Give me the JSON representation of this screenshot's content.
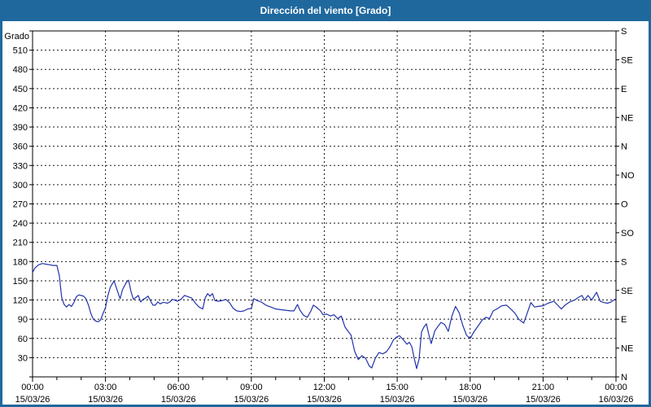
{
  "window": {
    "title": "Dirección del viento [Grado]"
  },
  "colors": {
    "frame": "#1f689e",
    "titlebar": "#1f689e",
    "title_text": "#ffffff",
    "panel": "#ffffff",
    "grid": "#1a1a1a",
    "axis": "#000000",
    "label": "#000000",
    "series": "#2233aa"
  },
  "chart_data": {
    "type": "line",
    "title": "Dirección del viento [Grado]",
    "ylabel_left": "Grado",
    "grid": "dashed",
    "legend": "none",
    "y_left": {
      "min": 0,
      "max": 540,
      "tick_step": 30,
      "first_label": 30,
      "last_label": 510
    },
    "y_right_ticks": [
      {
        "value": 0,
        "label": "N"
      },
      {
        "value": 45,
        "label": "NE"
      },
      {
        "value": 90,
        "label": "E"
      },
      {
        "value": 135,
        "label": "SE"
      },
      {
        "value": 180,
        "label": "S"
      },
      {
        "value": 225,
        "label": "SO"
      },
      {
        "value": 270,
        "label": "O"
      },
      {
        "value": 315,
        "label": "NO"
      },
      {
        "value": 360,
        "label": "N"
      },
      {
        "value": 405,
        "label": "NE"
      },
      {
        "value": 450,
        "label": "E"
      },
      {
        "value": 495,
        "label": "SE"
      },
      {
        "value": 540,
        "label": "S"
      }
    ],
    "x_axis": {
      "min_hours": 0,
      "max_hours": 24,
      "major_step_hours": 3,
      "minor_step_hours": 1,
      "major_labels": [
        {
          "time": "00:00",
          "date": "15/03/26"
        },
        {
          "time": "03:00",
          "date": "15/03/26"
        },
        {
          "time": "06:00",
          "date": "15/03/26"
        },
        {
          "time": "09:00",
          "date": "15/03/26"
        },
        {
          "time": "12:00",
          "date": "15/03/26"
        },
        {
          "time": "15:00",
          "date": "15/03/26"
        },
        {
          "time": "18:00",
          "date": "15/03/26"
        },
        {
          "time": "21:00",
          "date": "15/03/26"
        },
        {
          "time": "00:00",
          "date": "16/03/26"
        }
      ]
    },
    "series": [
      {
        "name": "Dirección del viento",
        "unit": "Grado",
        "color": "#2233aa",
        "points": [
          [
            0,
            163
          ],
          [
            0.1,
            170
          ],
          [
            0.25,
            175
          ],
          [
            0.4,
            177
          ],
          [
            0.55,
            176
          ],
          [
            0.7,
            175
          ],
          [
            0.85,
            174
          ],
          [
            1.0,
            174
          ],
          [
            1.1,
            158
          ],
          [
            1.2,
            124
          ],
          [
            1.3,
            113
          ],
          [
            1.4,
            109
          ],
          [
            1.5,
            113
          ],
          [
            1.6,
            110
          ],
          [
            1.7,
            116
          ],
          [
            1.8,
            125
          ],
          [
            1.9,
            128
          ],
          [
            2.0,
            127
          ],
          [
            2.1,
            126
          ],
          [
            2.2,
            122
          ],
          [
            2.3,
            112
          ],
          [
            2.4,
            99
          ],
          [
            2.5,
            90
          ],
          [
            2.6,
            87
          ],
          [
            2.7,
            86
          ],
          [
            2.8,
            89
          ],
          [
            2.9,
            99
          ],
          [
            3.0,
            108
          ],
          [
            3.1,
            127
          ],
          [
            3.2,
            140
          ],
          [
            3.35,
            150
          ],
          [
            3.5,
            133
          ],
          [
            3.6,
            122
          ],
          [
            3.7,
            136
          ],
          [
            3.85,
            147
          ],
          [
            3.95,
            151
          ],
          [
            4.05,
            133
          ],
          [
            4.15,
            121
          ],
          [
            4.25,
            124
          ],
          [
            4.35,
            127
          ],
          [
            4.45,
            117
          ],
          [
            4.55,
            121
          ],
          [
            4.65,
            123
          ],
          [
            4.75,
            126
          ],
          [
            4.85,
            119
          ],
          [
            4.95,
            112
          ],
          [
            5.05,
            112
          ],
          [
            5.15,
            117
          ],
          [
            5.25,
            114
          ],
          [
            5.35,
            116
          ],
          [
            5.45,
            116
          ],
          [
            5.55,
            115
          ],
          [
            5.65,
            117
          ],
          [
            5.75,
            121
          ],
          [
            5.85,
            120
          ],
          [
            5.95,
            118
          ],
          [
            6.1,
            121
          ],
          [
            6.25,
            127
          ],
          [
            6.4,
            125
          ],
          [
            6.55,
            123
          ],
          [
            6.7,
            115
          ],
          [
            6.85,
            109
          ],
          [
            7.0,
            106
          ],
          [
            7.1,
            123
          ],
          [
            7.2,
            130
          ],
          [
            7.3,
            126
          ],
          [
            7.4,
            130
          ],
          [
            7.5,
            119
          ],
          [
            7.65,
            118
          ],
          [
            7.8,
            119
          ],
          [
            7.95,
            121
          ],
          [
            8.1,
            116
          ],
          [
            8.25,
            107
          ],
          [
            8.4,
            103
          ],
          [
            8.55,
            102
          ],
          [
            8.7,
            103
          ],
          [
            8.85,
            106
          ],
          [
            9.0,
            107
          ],
          [
            9.1,
            122
          ],
          [
            9.25,
            119
          ],
          [
            9.4,
            117
          ],
          [
            9.6,
            112
          ],
          [
            9.8,
            109
          ],
          [
            10.0,
            106
          ],
          [
            10.2,
            105
          ],
          [
            10.4,
            104
          ],
          [
            10.6,
            103
          ],
          [
            10.75,
            103
          ],
          [
            10.9,
            113
          ],
          [
            11.0,
            104
          ],
          [
            11.15,
            96
          ],
          [
            11.3,
            93
          ],
          [
            11.45,
            103
          ],
          [
            11.55,
            112
          ],
          [
            11.7,
            108
          ],
          [
            11.85,
            103
          ],
          [
            11.95,
            97
          ],
          [
            12.1,
            98
          ],
          [
            12.25,
            95
          ],
          [
            12.4,
            97
          ],
          [
            12.55,
            91
          ],
          [
            12.7,
            95
          ],
          [
            12.85,
            78
          ],
          [
            13.0,
            70
          ],
          [
            13.1,
            65
          ],
          [
            13.25,
            40
          ],
          [
            13.4,
            27
          ],
          [
            13.55,
            33
          ],
          [
            13.7,
            29
          ],
          [
            13.85,
            17
          ],
          [
            13.95,
            14
          ],
          [
            14.1,
            29
          ],
          [
            14.25,
            38
          ],
          [
            14.4,
            36
          ],
          [
            14.55,
            39
          ],
          [
            14.7,
            47
          ],
          [
            14.85,
            58
          ],
          [
            15.0,
            63
          ],
          [
            15.1,
            64
          ],
          [
            15.25,
            58
          ],
          [
            15.4,
            51
          ],
          [
            15.5,
            54
          ],
          [
            15.6,
            47
          ],
          [
            15.7,
            29
          ],
          [
            15.8,
            13
          ],
          [
            15.9,
            28
          ],
          [
            16.0,
            70
          ],
          [
            16.1,
            78
          ],
          [
            16.2,
            83
          ],
          [
            16.3,
            66
          ],
          [
            16.4,
            52
          ],
          [
            16.55,
            72
          ],
          [
            16.7,
            80
          ],
          [
            16.8,
            85
          ],
          [
            16.95,
            82
          ],
          [
            17.1,
            71
          ],
          [
            17.25,
            95
          ],
          [
            17.4,
            110
          ],
          [
            17.55,
            100
          ],
          [
            17.7,
            80
          ],
          [
            17.85,
            65
          ],
          [
            18.0,
            60
          ],
          [
            18.15,
            70
          ],
          [
            18.3,
            78
          ],
          [
            18.5,
            89
          ],
          [
            18.65,
            93
          ],
          [
            18.8,
            91
          ],
          [
            18.95,
            103
          ],
          [
            19.1,
            106
          ],
          [
            19.3,
            111
          ],
          [
            19.5,
            112
          ],
          [
            19.7,
            105
          ],
          [
            19.85,
            99
          ],
          [
            20.0,
            90
          ],
          [
            20.2,
            84
          ],
          [
            20.35,
            100
          ],
          [
            20.5,
            116
          ],
          [
            20.65,
            109
          ],
          [
            20.8,
            110
          ],
          [
            21.0,
            111
          ],
          [
            21.2,
            115
          ],
          [
            21.45,
            118
          ],
          [
            21.6,
            112
          ],
          [
            21.75,
            106
          ],
          [
            21.9,
            112
          ],
          [
            22.1,
            117
          ],
          [
            22.3,
            120
          ],
          [
            22.45,
            124
          ],
          [
            22.6,
            127
          ],
          [
            22.7,
            120
          ],
          [
            22.85,
            127
          ],
          [
            23.0,
            120
          ],
          [
            23.2,
            132
          ],
          [
            23.35,
            118
          ],
          [
            23.5,
            116
          ],
          [
            23.65,
            115
          ],
          [
            23.8,
            117
          ],
          [
            24.0,
            122
          ]
        ]
      }
    ]
  }
}
